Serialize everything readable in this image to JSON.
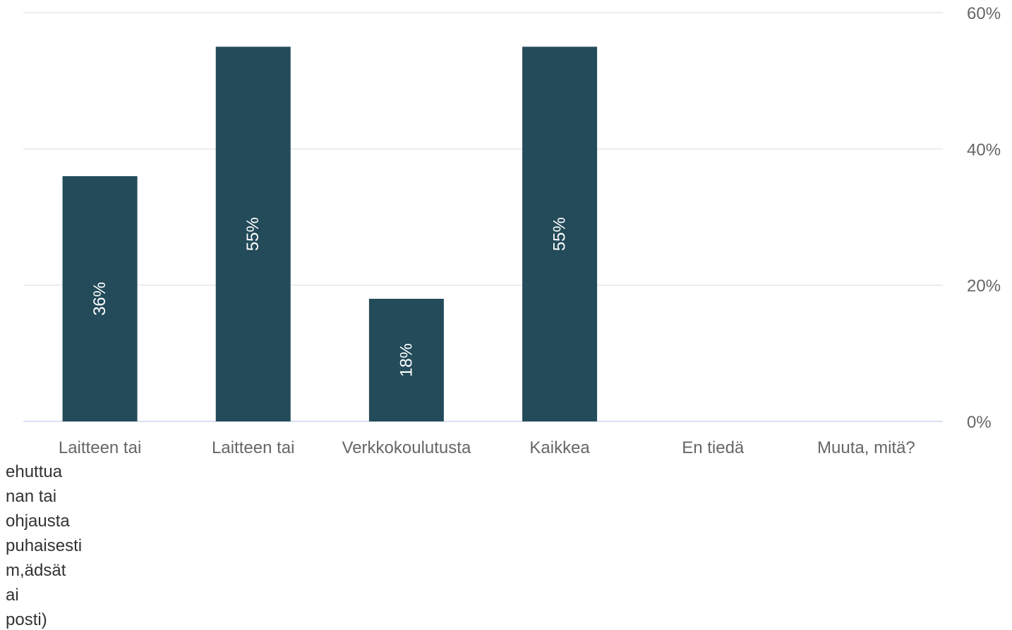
{
  "chart_data": {
    "type": "bar",
    "categories": [
      "Laitteen tai",
      "Laitteen tai",
      "Verkkokoulutusta",
      "Kaikkea",
      "En tiedä",
      "Muuta, mitä?"
    ],
    "values": [
      36,
      55,
      18,
      55,
      0,
      0
    ],
    "data_labels": [
      "36%",
      "55%",
      "18%",
      "55%",
      "",
      ""
    ],
    "y_ticks": [
      "0%",
      "20%",
      "40%",
      "60%"
    ],
    "y_tick_values": [
      0,
      20,
      40,
      60
    ],
    "ylim": [
      0,
      60
    ],
    "y_axis_side": "right",
    "grid": true,
    "bar_color": "#234B5A",
    "overflow_text": [
      "ehuttua",
      "nan tai",
      "ohjausta",
      "puhaisesti",
      "m,ädsät",
      "ai",
      "posti)"
    ]
  }
}
